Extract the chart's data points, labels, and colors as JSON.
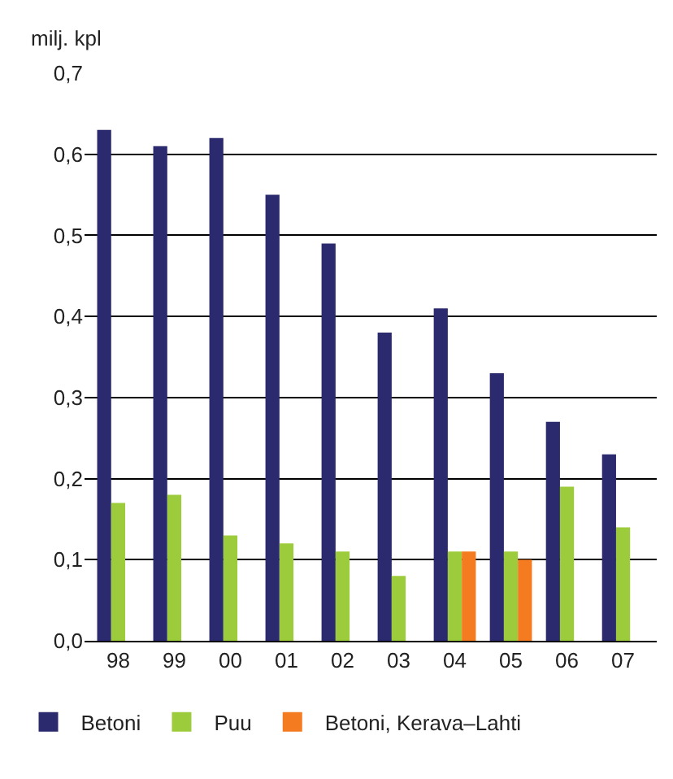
{
  "chart_data": {
    "type": "bar",
    "ylabel": "milj. kpl",
    "categories": [
      "98",
      "99",
      "00",
      "01",
      "02",
      "03",
      "04",
      "05",
      "06",
      "07"
    ],
    "series": [
      {
        "name": "Betoni",
        "color": "#2b2a6e",
        "values": [
          0.63,
          0.61,
          0.62,
          0.55,
          0.49,
          0.38,
          0.41,
          0.33,
          0.27,
          0.23
        ]
      },
      {
        "name": "Puu",
        "color": "#9ccc3c",
        "values": [
          0.17,
          0.18,
          0.13,
          0.12,
          0.11,
          0.08,
          0.11,
          0.11,
          0.19,
          0.14
        ]
      },
      {
        "name": "Betoni, Kerava–Lahti",
        "color": "#f47b20",
        "values": [
          null,
          null,
          null,
          null,
          null,
          null,
          0.11,
          0.1,
          null,
          null
        ]
      }
    ],
    "ylim": [
      0,
      0.7
    ],
    "yticks": [
      {
        "value": 0,
        "label": "0,0"
      },
      {
        "value": 0.1,
        "label": "0,1"
      },
      {
        "value": 0.2,
        "label": "0,2"
      },
      {
        "value": 0.3,
        "label": "0,3"
      },
      {
        "value": 0.4,
        "label": "0,4"
      },
      {
        "value": 0.5,
        "label": "0,5"
      },
      {
        "value": 0.6,
        "label": "0,6"
      },
      {
        "value": 0.7,
        "label": "0,7"
      }
    ],
    "grid": "y",
    "legend": "bottom"
  }
}
